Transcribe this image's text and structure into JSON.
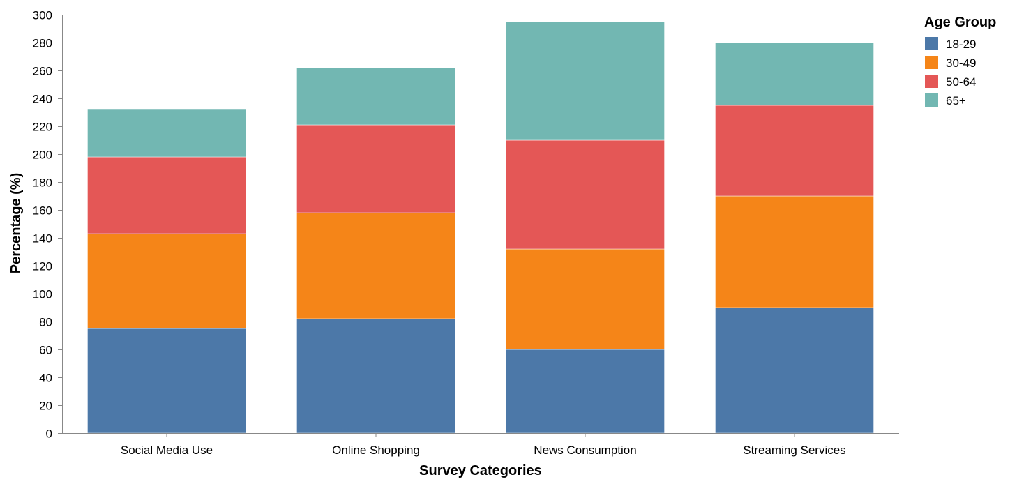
{
  "chart_data": {
    "type": "bar",
    "stacked": true,
    "xlabel": "Survey Categories",
    "ylabel": "Percentage (%)",
    "ylim": [
      0,
      300
    ],
    "yticks": [
      0,
      20,
      40,
      60,
      80,
      100,
      120,
      140,
      160,
      180,
      200,
      220,
      240,
      260,
      280,
      300
    ],
    "grid": false,
    "legend_title": "Age Group",
    "legend_position": "top-right",
    "categories": [
      "Social Media Use",
      "Online Shopping",
      "News Consumption",
      "Streaming Services"
    ],
    "series": [
      {
        "name": "18-29",
        "color": "#4c78a8",
        "values": [
          75,
          82,
          60,
          90
        ]
      },
      {
        "name": "30-49",
        "color": "#f58518",
        "values": [
          68,
          76,
          72,
          80
        ]
      },
      {
        "name": "50-64",
        "color": "#e45756",
        "values": [
          55,
          63,
          78,
          65
        ]
      },
      {
        "name": "65+",
        "color": "#72b7b2",
        "values": [
          34,
          41,
          85,
          45
        ]
      }
    ]
  }
}
